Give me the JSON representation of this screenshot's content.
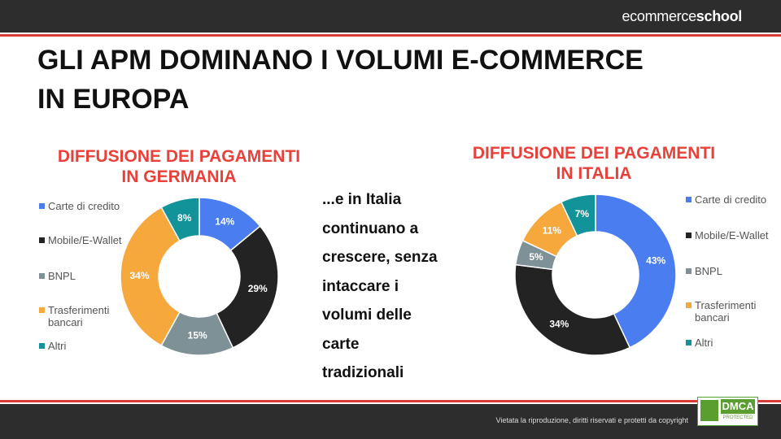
{
  "header": {
    "brand_light": "ecommerce",
    "brand_bold": "school"
  },
  "title": [
    "GLI APM DOMINANO I VOLUMI E-COMMERCE",
    "IN EUROPA"
  ],
  "body_text": [
    "...e in Italia",
    "continuano a",
    "crescere, senza",
    "intaccare i",
    "volumi delle",
    "carte",
    "tradizionali"
  ],
  "footer": {
    "note": "Vietata la riproduzione, diritti riservati e protetti da copyright",
    "badge": "DMCA",
    "badge_sub": "PROTECTED"
  },
  "chart_data": [
    {
      "type": "donut",
      "title": [
        "DIFFUSIONE DEI PAGAMENTI",
        "IN GERMANIA"
      ],
      "categories": [
        "Carte di credito",
        "Mobile/E-Wallet",
        "BNPL",
        "Trasferimenti bancari",
        "Altri"
      ],
      "values": [
        14,
        29,
        15,
        34,
        8
      ],
      "value_labels": [
        "14%",
        "29%",
        "15%",
        "34%",
        "8%"
      ],
      "colors": [
        "#4a7ef0",
        "#232323",
        "#7e9196",
        "#f7a83c",
        "#12939a"
      ],
      "legend": "left"
    },
    {
      "type": "donut",
      "title": [
        "DIFFUSIONE DEI PAGAMENTI",
        "IN ITALIA"
      ],
      "categories": [
        "Carte di credito",
        "Mobile/E-Wallet",
        "BNPL",
        "Trasferimenti bancari",
        "Altri"
      ],
      "values": [
        43,
        34,
        5,
        11,
        7
      ],
      "value_labels": [
        "43%",
        "34%",
        "5%",
        "11%",
        "7%"
      ],
      "colors": [
        "#4a7ef0",
        "#232323",
        "#7e9196",
        "#f7a83c",
        "#12939a"
      ],
      "legend": "right"
    }
  ]
}
